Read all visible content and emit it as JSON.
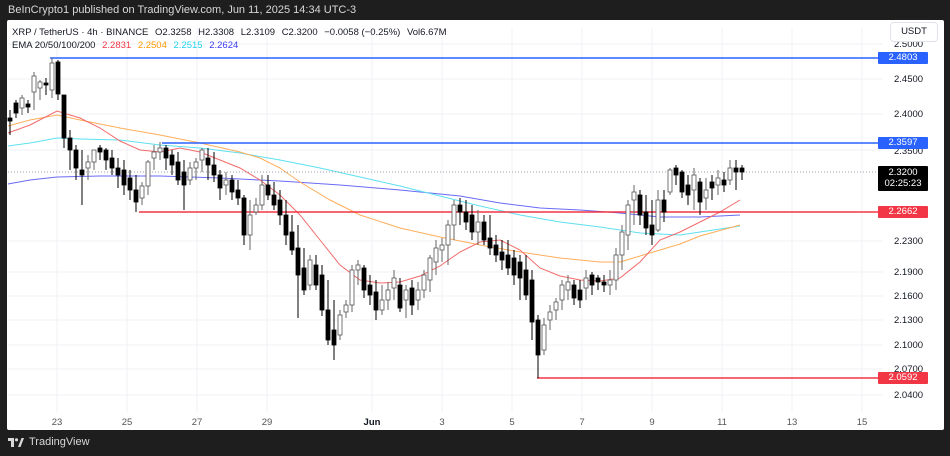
{
  "header": {
    "publisher_line": "BeInCrypto1 published on TradingView.com, Jun 11, 2025 14:34 UTC-3"
  },
  "legend": {
    "symbol": "XRP / TetherUS · 4h · BINANCE",
    "open": "O2.3258",
    "high": "H2.3308",
    "low": "L2.3109",
    "close": "C2.3200",
    "change": "−0.0058 (−0.25%)",
    "volume": "Vol6.67M",
    "ema_label": "EMA 20/50/100/200",
    "ema20": "2.2831",
    "ema50": "2.2504",
    "ema100": "2.2515",
    "ema200": "2.2624"
  },
  "colors": {
    "ema20": "#f23645",
    "ema50": "#ff9800",
    "ema100": "#22d3ee",
    "ema200": "#3b3bf0",
    "resistance": "#2962ff",
    "support": "#f23645",
    "current_price_bg": "#000000"
  },
  "price_axis": {
    "currency": "USDT",
    "ticks": [
      "2.5000",
      "2.4500",
      "2.4000",
      "2.3500",
      "2.2300",
      "2.1900",
      "2.1600",
      "2.1300",
      "2.1000",
      "2.0700",
      "2.0400"
    ],
    "tags": {
      "r1": "2.4803",
      "r2": "2.3597",
      "current": "2.3200",
      "countdown": "02:25:23",
      "s1": "2.2662",
      "s2": "2.0592"
    }
  },
  "time_axis": {
    "ticks": [
      "23",
      "25",
      "27",
      "29",
      "Jun",
      "3",
      "5",
      "7",
      "9",
      "11",
      "13",
      "15"
    ]
  },
  "footer": {
    "brand": "TradingView"
  },
  "chart_data": {
    "type": "candlestick",
    "title": "XRP / TetherUS · 4h · BINANCE",
    "xlabel": "",
    "ylabel": "USDT",
    "ylim": [
      2.03,
      2.51
    ],
    "x_ticks": [
      "May 23",
      "May 25",
      "May 27",
      "May 29",
      "Jun 1",
      "Jun 3",
      "Jun 5",
      "Jun 7",
      "Jun 9",
      "Jun 11",
      "Jun 13",
      "Jun 15"
    ],
    "last_ohlc": {
      "open": 2.3258,
      "high": 2.3308,
      "low": 2.3109,
      "close": 2.32,
      "change": -0.0058,
      "change_pct": -0.25,
      "volume": "6.67M"
    },
    "indicators": [
      {
        "name": "EMA 20",
        "value": 2.2831,
        "color": "#f23645"
      },
      {
        "name": "EMA 50",
        "value": 2.2504,
        "color": "#ff9800"
      },
      {
        "name": "EMA 100",
        "value": 2.2515,
        "color": "#22d3ee"
      },
      {
        "name": "EMA 200",
        "value": 2.2624,
        "color": "#3b3bf0"
      }
    ],
    "horizontal_levels": [
      {
        "price": 2.4803,
        "type": "resistance",
        "color": "#2962ff",
        "from": "May 23"
      },
      {
        "price": 2.3597,
        "type": "resistance",
        "color": "#2962ff",
        "from": "May 26"
      },
      {
        "price": 2.2662,
        "type": "support",
        "color": "#f23645",
        "from": "May 25"
      },
      {
        "price": 2.0592,
        "type": "support",
        "color": "#f23645",
        "from": "Jun 5"
      }
    ],
    "approx_path": [
      {
        "date": "May 22",
        "close": 2.42
      },
      {
        "date": "May 23",
        "close": 2.47,
        "note": "high ~2.48"
      },
      {
        "date": "May 23 late",
        "close": 2.33
      },
      {
        "date": "May 24",
        "close": 2.33
      },
      {
        "date": "May 25",
        "close": 2.29
      },
      {
        "date": "May 26",
        "close": 2.34
      },
      {
        "date": "May 27",
        "close": 2.32
      },
      {
        "date": "May 28",
        "close": 2.28
      },
      {
        "date": "May 29",
        "close": 2.3
      },
      {
        "date": "May 30",
        "close": 2.2
      },
      {
        "date": "May 31",
        "close": 2.1,
        "note": "low ~2.08"
      },
      {
        "date": "Jun 1",
        "close": 2.17
      },
      {
        "date": "Jun 2",
        "close": 2.18
      },
      {
        "date": "Jun 3",
        "close": 2.27
      },
      {
        "date": "Jun 4",
        "close": 2.22
      },
      {
        "date": "Jun 5",
        "close": 2.15
      },
      {
        "date": "Jun 5 late",
        "close": 2.08,
        "note": "low ~2.06"
      },
      {
        "date": "Jun 6",
        "close": 2.17
      },
      {
        "date": "Jun 7",
        "close": 2.18
      },
      {
        "date": "Jun 8",
        "close": 2.25
      },
      {
        "date": "Jun 9",
        "close": 2.28
      },
      {
        "date": "Jun 10",
        "close": 2.3
      },
      {
        "date": "Jun 11",
        "close": 2.32
      }
    ]
  }
}
